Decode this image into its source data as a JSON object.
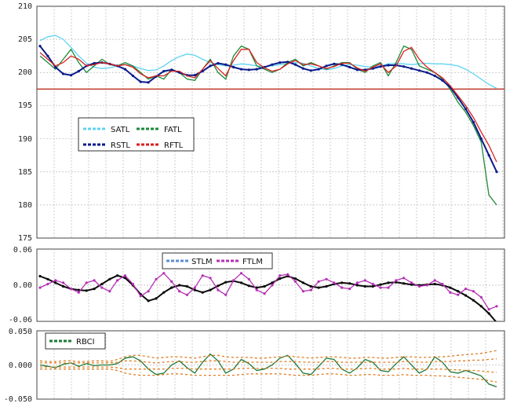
{
  "chart_data": [
    {
      "type": "line",
      "ylim": [
        175,
        210
      ],
      "yticks": [
        "210",
        "205",
        "200",
        "195",
        "190",
        "185",
        "180",
        "175"
      ],
      "ytick_values": [
        210,
        205,
        200,
        195,
        190,
        185,
        180,
        175
      ],
      "x": [
        0,
        10,
        20,
        30,
        40,
        50,
        60,
        70,
        80,
        90,
        100,
        110,
        120,
        130,
        140,
        150,
        160,
        170,
        180,
        190,
        200,
        210,
        220,
        230,
        240,
        250,
        260,
        270,
        280,
        290,
        300,
        310,
        320,
        330,
        340,
        350,
        360,
        370,
        380,
        390,
        400,
        410,
        420,
        430,
        440,
        450,
        460,
        470,
        480,
        490,
        500,
        510,
        520,
        530,
        540,
        550,
        560,
        570,
        580,
        590
      ],
      "xlim": [
        0,
        590
      ],
      "reference_line": {
        "y": 197.5,
        "color": "#c0392b"
      },
      "legend": [
        "SATL",
        "FATL",
        "RSTL",
        "RFTL"
      ],
      "legend_placement": "left",
      "grid": true,
      "series": [
        {
          "name": "SATL",
          "color": "#5fd3f3",
          "values": [
            204.8,
            205.4,
            205.6,
            205.0,
            203.8,
            202.5,
            201.4,
            200.8,
            200.6,
            200.7,
            201.0,
            201.2,
            201.0,
            200.6,
            200.3,
            200.4,
            201.0,
            201.8,
            202.4,
            202.8,
            202.6,
            202.0,
            201.5,
            201.2,
            201.0,
            201.1,
            201.3,
            201.2,
            201.0,
            200.9,
            201.0,
            201.2,
            201.4,
            201.5,
            201.4,
            201.0,
            200.6,
            200.4,
            200.6,
            201.0,
            201.2,
            201.1,
            200.9,
            200.8,
            201.0,
            201.3,
            201.4,
            201.3,
            201.2,
            201.3,
            201.4,
            201.3,
            201.3,
            201.2,
            201.0,
            200.5,
            199.8,
            199.0,
            198.2,
            197.6
          ]
        },
        {
          "name": "FATL",
          "color": "#1e8a3a",
          "values": [
            202.5,
            201.5,
            200.5,
            202.0,
            203.5,
            201.5,
            200.0,
            201.0,
            202.0,
            201.2,
            201.0,
            201.5,
            201.0,
            200.0,
            199.0,
            199.5,
            199.0,
            200.5,
            200.0,
            199.0,
            198.8,
            200.5,
            202.0,
            200.0,
            199.0,
            202.5,
            204.0,
            203.5,
            201.0,
            200.5,
            200.0,
            200.5,
            201.5,
            202.0,
            201.0,
            201.5,
            201.0,
            200.5,
            201.0,
            201.5,
            201.5,
            200.5,
            200.0,
            201.0,
            201.5,
            199.5,
            201.5,
            204.0,
            203.5,
            201.0,
            200.5,
            200.0,
            199.0,
            197.5,
            195.5,
            194.0,
            192.0,
            189.5,
            181.5,
            180.0
          ]
        },
        {
          "name": "RSTL",
          "color": "#0a1a8a",
          "values": [
            204.0,
            202.5,
            200.8,
            199.8,
            199.6,
            200.2,
            201.0,
            201.4,
            201.5,
            201.3,
            201.0,
            200.5,
            199.5,
            198.6,
            198.5,
            199.4,
            200.2,
            200.4,
            200.0,
            199.6,
            199.6,
            200.2,
            201.0,
            201.4,
            201.2,
            200.8,
            200.5,
            200.4,
            200.5,
            200.8,
            201.2,
            201.5,
            201.6,
            201.2,
            200.6,
            200.3,
            200.5,
            201.0,
            201.3,
            201.2,
            200.8,
            200.4,
            200.4,
            200.6,
            200.9,
            201.1,
            201.1,
            200.9,
            200.6,
            200.3,
            200.0,
            199.5,
            198.8,
            197.8,
            196.2,
            194.5,
            192.5,
            190.0,
            187.5,
            185.0
          ]
        },
        {
          "name": "RFTL",
          "color": "#d9211f",
          "values": [
            203.0,
            202.0,
            201.0,
            201.5,
            202.5,
            202.0,
            201.0,
            201.2,
            201.5,
            201.3,
            201.0,
            201.2,
            200.8,
            199.8,
            199.2,
            199.5,
            199.5,
            200.2,
            200.2,
            199.5,
            199.2,
            200.5,
            201.8,
            200.6,
            199.5,
            201.8,
            203.5,
            203.5,
            201.5,
            200.7,
            200.2,
            200.5,
            201.3,
            201.8,
            201.2,
            201.3,
            201.0,
            200.6,
            200.9,
            201.4,
            201.4,
            200.7,
            200.2,
            200.8,
            201.3,
            200.0,
            201.0,
            203.2,
            203.8,
            202.0,
            200.8,
            200.0,
            199.2,
            198.0,
            196.5,
            195.0,
            193.2,
            191.0,
            189.0,
            186.5
          ]
        }
      ]
    },
    {
      "type": "line",
      "ylim": [
        -0.06,
        0.06
      ],
      "yticks": [
        "0.06",
        "0.00",
        "-0.06"
      ],
      "ytick_values": [
        0.06,
        0.0,
        -0.06
      ],
      "x": [
        0,
        10,
        20,
        30,
        40,
        50,
        60,
        70,
        80,
        90,
        100,
        110,
        120,
        130,
        140,
        150,
        160,
        170,
        180,
        190,
        200,
        210,
        220,
        230,
        240,
        250,
        260,
        270,
        280,
        290,
        300,
        310,
        320,
        330,
        340,
        350,
        360,
        370,
        380,
        390,
        400,
        410,
        420,
        430,
        440,
        450,
        460,
        470,
        480,
        490,
        500,
        510,
        520,
        530,
        540,
        550,
        560,
        570,
        580,
        590
      ],
      "xlim": [
        0,
        590
      ],
      "legend": [
        "STLM",
        "FTLM"
      ],
      "legend_placement": "top-center",
      "grid": true,
      "series": [
        {
          "name": "STLM",
          "color": "#0a0a0a",
          "values": [
            0.015,
            0.01,
            0.004,
            -0.002,
            -0.006,
            -0.008,
            -0.009,
            -0.006,
            0.002,
            0.01,
            0.016,
            0.012,
            0.0,
            -0.015,
            -0.026,
            -0.022,
            -0.012,
            -0.004,
            0.0,
            -0.002,
            -0.008,
            -0.012,
            -0.008,
            -0.001,
            0.005,
            0.007,
            0.004,
            -0.001,
            -0.004,
            -0.002,
            0.004,
            0.011,
            0.015,
            0.011,
            0.004,
            -0.002,
            -0.004,
            -0.002,
            0.002,
            0.004,
            0.003,
            0.0,
            -0.002,
            -0.002,
            0.001,
            0.004,
            0.005,
            0.003,
            0.001,
            0.0,
            0.001,
            0.002,
            0.0,
            -0.004,
            -0.01,
            -0.017,
            -0.025,
            -0.035,
            -0.047,
            -0.062
          ]
        },
        {
          "name": "FTLM",
          "color": "#b530b5",
          "values": [
            -0.004,
            0.002,
            0.008,
            0.004,
            -0.006,
            -0.012,
            0.004,
            0.008,
            -0.004,
            -0.01,
            0.008,
            0.016,
            0.002,
            -0.018,
            -0.01,
            0.01,
            0.02,
            0.006,
            -0.01,
            -0.016,
            -0.004,
            0.016,
            0.012,
            -0.008,
            -0.016,
            0.008,
            0.02,
            0.01,
            -0.008,
            -0.014,
            0.0,
            0.016,
            0.018,
            0.006,
            -0.01,
            -0.008,
            0.006,
            0.01,
            0.004,
            -0.004,
            -0.006,
            0.004,
            0.008,
            0.002,
            -0.004,
            -0.004,
            0.008,
            0.012,
            0.004,
            -0.002,
            0.0,
            0.008,
            0.002,
            -0.012,
            -0.016,
            -0.006,
            -0.01,
            -0.02,
            -0.04,
            -0.035
          ]
        }
      ]
    },
    {
      "type": "line",
      "ylim": [
        -0.05,
        0.05
      ],
      "yticks": [
        "0.050",
        "0.000",
        "-0.050"
      ],
      "ytick_values": [
        0.05,
        0.0,
        -0.05
      ],
      "x": [
        0,
        10,
        20,
        30,
        40,
        50,
        60,
        70,
        80,
        90,
        100,
        110,
        120,
        130,
        140,
        150,
        160,
        170,
        180,
        190,
        200,
        210,
        220,
        230,
        240,
        250,
        260,
        270,
        280,
        290,
        300,
        310,
        320,
        330,
        340,
        350,
        360,
        370,
        380,
        390,
        400,
        410,
        420,
        430,
        440,
        450,
        460,
        470,
        480,
        490,
        500,
        510,
        520,
        530,
        540,
        550,
        560,
        570,
        580,
        590
      ],
      "xlim": [
        0,
        590
      ],
      "legend": [
        "RBCI"
      ],
      "legend_placement": "top-left",
      "grid": true,
      "series": [
        {
          "name": "RBCI",
          "color": "#1e7a35",
          "values": [
            0.0,
            -0.002,
            -0.004,
            0.001,
            0.003,
            -0.002,
            0.002,
            -0.001,
            0.0,
            0.0,
            0.002,
            0.01,
            0.012,
            0.006,
            -0.006,
            -0.014,
            -0.012,
            0.0,
            0.006,
            -0.004,
            -0.012,
            0.004,
            0.016,
            0.006,
            -0.012,
            -0.006,
            0.008,
            0.002,
            -0.008,
            -0.006,
            0.0,
            0.01,
            0.014,
            0.002,
            -0.012,
            -0.014,
            -0.002,
            0.01,
            0.008,
            -0.006,
            -0.012,
            -0.004,
            0.008,
            0.004,
            -0.008,
            -0.01,
            0.002,
            0.012,
            0.0,
            -0.012,
            -0.006,
            0.012,
            0.004,
            -0.01,
            -0.012,
            -0.008,
            -0.012,
            -0.016,
            -0.028,
            -0.032
          ]
        },
        {
          "name": "",
          "color": "#e07b1f",
          "values": [
            0.006,
            0.005,
            0.005,
            0.006,
            0.006,
            0.005,
            0.005,
            0.006,
            0.006,
            0.005,
            0.008,
            0.012,
            0.014,
            0.014,
            0.012,
            0.01,
            0.011,
            0.012,
            0.012,
            0.011,
            0.01,
            0.012,
            0.014,
            0.014,
            0.012,
            0.011,
            0.011,
            0.011,
            0.01,
            0.01,
            0.011,
            0.012,
            0.013,
            0.012,
            0.011,
            0.01,
            0.011,
            0.012,
            0.012,
            0.011,
            0.01,
            0.01,
            0.011,
            0.011,
            0.01,
            0.01,
            0.011,
            0.012,
            0.012,
            0.011,
            0.011,
            0.012,
            0.012,
            0.013,
            0.014,
            0.015,
            0.016,
            0.017,
            0.019,
            0.021
          ]
        },
        {
          "name": "",
          "color": "#e07b1f",
          "values": [
            0.003,
            0.003,
            0.003,
            0.003,
            0.003,
            0.003,
            0.003,
            0.003,
            0.003,
            0.003,
            0.004,
            0.006,
            0.006,
            0.005,
            0.004,
            0.003,
            0.004,
            0.005,
            0.005,
            0.004,
            0.004,
            0.005,
            0.006,
            0.006,
            0.005,
            0.004,
            0.004,
            0.004,
            0.004,
            0.004,
            0.004,
            0.005,
            0.005,
            0.005,
            0.004,
            0.004,
            0.004,
            0.005,
            0.005,
            0.004,
            0.004,
            0.004,
            0.004,
            0.004,
            0.004,
            0.004,
            0.004,
            0.005,
            0.005,
            0.004,
            0.004,
            0.005,
            0.005,
            0.005,
            0.006,
            0.006,
            0.007,
            0.007,
            0.008,
            0.009
          ]
        },
        {
          "name": "",
          "color": "#e07b1f",
          "values": [
            -0.003,
            -0.003,
            -0.003,
            -0.003,
            -0.003,
            -0.003,
            -0.003,
            -0.003,
            -0.003,
            -0.003,
            -0.004,
            -0.006,
            -0.006,
            -0.006,
            -0.006,
            -0.006,
            -0.006,
            -0.005,
            -0.005,
            -0.005,
            -0.006,
            -0.006,
            -0.006,
            -0.006,
            -0.006,
            -0.006,
            -0.005,
            -0.005,
            -0.005,
            -0.005,
            -0.005,
            -0.005,
            -0.006,
            -0.006,
            -0.006,
            -0.006,
            -0.006,
            -0.005,
            -0.005,
            -0.006,
            -0.006,
            -0.006,
            -0.005,
            -0.005,
            -0.006,
            -0.006,
            -0.006,
            -0.005,
            -0.006,
            -0.006,
            -0.006,
            -0.006,
            -0.006,
            -0.007,
            -0.007,
            -0.008,
            -0.008,
            -0.009,
            -0.01,
            -0.011
          ]
        },
        {
          "name": "",
          "color": "#e07b1f",
          "values": [
            -0.006,
            -0.006,
            -0.006,
            -0.006,
            -0.006,
            -0.006,
            -0.006,
            -0.006,
            -0.006,
            -0.006,
            -0.008,
            -0.012,
            -0.014,
            -0.015,
            -0.015,
            -0.015,
            -0.014,
            -0.013,
            -0.013,
            -0.014,
            -0.015,
            -0.015,
            -0.015,
            -0.015,
            -0.015,
            -0.015,
            -0.014,
            -0.013,
            -0.013,
            -0.013,
            -0.013,
            -0.013,
            -0.014,
            -0.015,
            -0.015,
            -0.015,
            -0.014,
            -0.013,
            -0.013,
            -0.014,
            -0.015,
            -0.015,
            -0.014,
            -0.014,
            -0.015,
            -0.015,
            -0.015,
            -0.014,
            -0.015,
            -0.015,
            -0.015,
            -0.016,
            -0.016,
            -0.017,
            -0.018,
            -0.019,
            -0.02,
            -0.021,
            -0.023,
            -0.025
          ]
        }
      ]
    }
  ]
}
